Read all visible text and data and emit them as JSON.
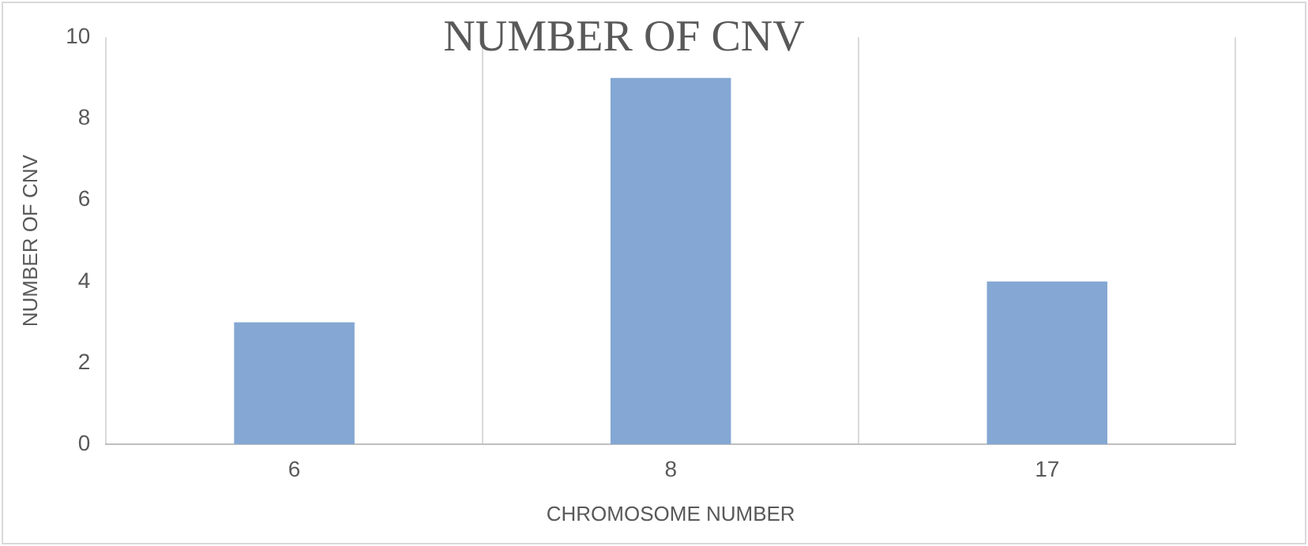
{
  "chart_data": {
    "type": "bar",
    "title": "NUMBER OF CNV",
    "xlabel": "CHROMOSOME NUMBER",
    "ylabel": "NUMBER OF CNV",
    "categories": [
      "6",
      "8",
      "17"
    ],
    "values": [
      3,
      9,
      4
    ],
    "color": "#84a7d3",
    "ylim": [
      0,
      10
    ],
    "yticks": [
      0,
      2,
      4,
      6,
      8,
      10
    ],
    "grid": "x",
    "legend": false
  }
}
